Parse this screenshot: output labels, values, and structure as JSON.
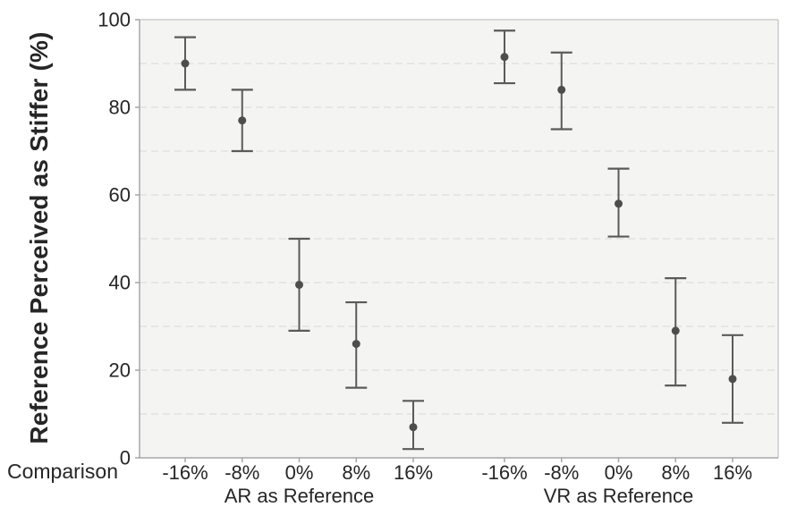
{
  "figure": {
    "y_axis_title": "Reference Perceived as Stiffer (%)",
    "x_axis_prefix_label": "Comparison"
  },
  "colors": {
    "plot_background": "#f4f4f2",
    "gridline": "#e2e2e0",
    "axis_line": "#a6a6a6",
    "panel_border": "#cbcbcb",
    "tick_mark": "#a6a6a6",
    "error_bar": "#5a5a5a",
    "point": "#4d4d4d",
    "text": "#262626"
  },
  "chart_data": {
    "type": "scatter",
    "subtype": "means-with-error-bars",
    "title": "",
    "ylabel": "Reference Perceived as Stiffer (%)",
    "xlabel_prefix": "Comparison",
    "ylim": [
      0,
      100
    ],
    "y_major_ticks": [
      0,
      20,
      40,
      60,
      80,
      100
    ],
    "y_gridline_step": 10,
    "grid": "horizontal-dashed",
    "legend": "none",
    "categories": [
      "-16%",
      "-8%",
      "0%",
      "8%",
      "16%"
    ],
    "groups": [
      {
        "label": "AR as Reference",
        "points": [
          {
            "x": "-16%",
            "mean": 90,
            "ci_low": 84,
            "ci_high": 96
          },
          {
            "x": "-8%",
            "mean": 77,
            "ci_low": 70,
            "ci_high": 84
          },
          {
            "x": "0%",
            "mean": 39.5,
            "ci_low": 29,
            "ci_high": 50
          },
          {
            "x": "8%",
            "mean": 26,
            "ci_low": 16,
            "ci_high": 35.5
          },
          {
            "x": "16%",
            "mean": 7,
            "ci_low": 2,
            "ci_high": 13
          }
        ]
      },
      {
        "label": "VR as Reference",
        "points": [
          {
            "x": "-16%",
            "mean": 91.5,
            "ci_low": 85.5,
            "ci_high": 97.5
          },
          {
            "x": "-8%",
            "mean": 84,
            "ci_low": 75,
            "ci_high": 92.5
          },
          {
            "x": "0%",
            "mean": 58,
            "ci_low": 50.5,
            "ci_high": 66
          },
          {
            "x": "8%",
            "mean": 29,
            "ci_low": 16.5,
            "ci_high": 41
          },
          {
            "x": "16%",
            "mean": 18,
            "ci_low": 8,
            "ci_high": 28
          }
        ]
      }
    ]
  }
}
